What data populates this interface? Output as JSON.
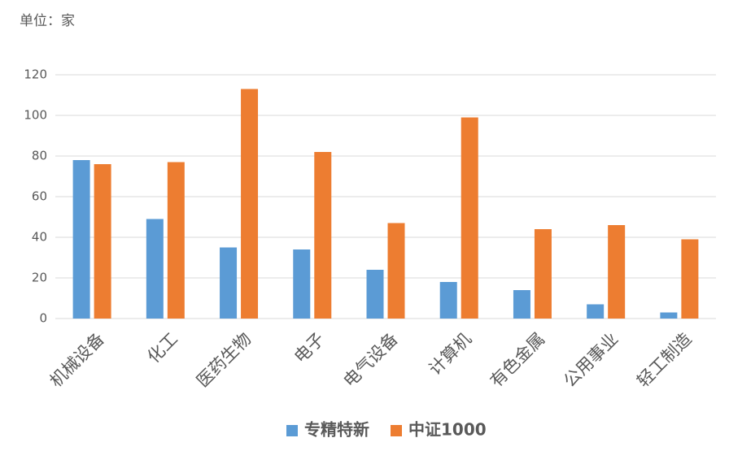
{
  "chart_data": {
    "type": "bar",
    "subtitle": "单位：家",
    "categories": [
      "机械设备",
      "化工",
      "医药生物",
      "电子",
      "电气设备",
      "计算机",
      "有色金属",
      "公用事业",
      "轻工制造"
    ],
    "series": [
      {
        "name": "专精特新",
        "color": "#5b9bd5",
        "values": [
          78,
          49,
          35,
          34,
          24,
          18,
          14,
          7,
          3
        ]
      },
      {
        "name": "中证1000",
        "color": "#ed7d31",
        "values": [
          76,
          77,
          113,
          82,
          47,
          99,
          44,
          46,
          39
        ]
      }
    ],
    "ylim": [
      0,
      120
    ],
    "yticks": [
      0,
      20,
      40,
      60,
      80,
      100,
      120
    ],
    "grid": true,
    "legend": "bottom"
  }
}
